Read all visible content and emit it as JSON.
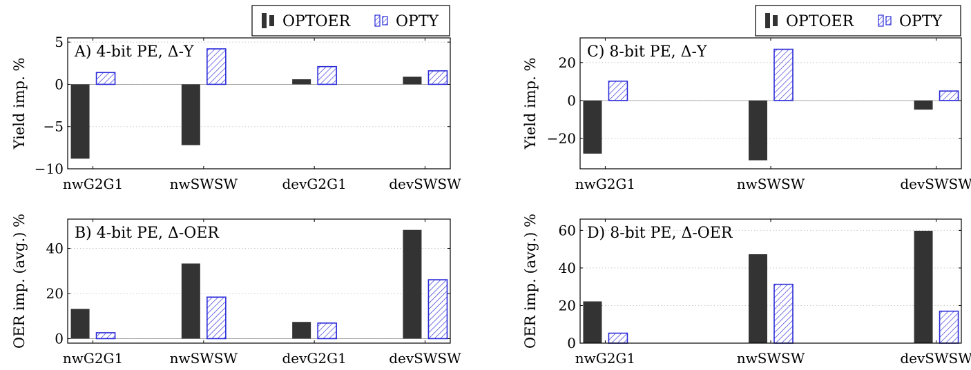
{
  "legend": [
    {
      "name": "OPTOER",
      "color": "#333333",
      "pattern": "solid"
    },
    {
      "name": "OPTY",
      "color": "#2b2bd9",
      "pattern": "hatch"
    }
  ],
  "chart_data": [
    {
      "type": "bar",
      "title": "A) 4-bit PE, Δ-Y",
      "ylabel": "Yield imp. %",
      "categories": [
        "nwG2G1",
        "nwSWSW",
        "devG2G1",
        "devSWSW"
      ],
      "ylim": [
        -10,
        5.5
      ],
      "yticks": [
        -10,
        -5,
        0,
        5
      ],
      "grid": true,
      "series": [
        {
          "name": "OPTOER",
          "values": [
            -8.8,
            -7.2,
            0.6,
            0.9
          ]
        },
        {
          "name": "OPTY",
          "values": [
            1.4,
            4.2,
            2.1,
            1.6
          ]
        }
      ]
    },
    {
      "type": "bar",
      "title": "B) 4-bit PE, Δ-OER",
      "ylabel": "OER imp. (avg.) %",
      "categories": [
        "nwG2G1",
        "nwSWSW",
        "devG2G1",
        "devSWSW"
      ],
      "ylim": [
        -2,
        53
      ],
      "yticks": [
        0,
        20,
        40
      ],
      "grid": true,
      "series": [
        {
          "name": "OPTOER",
          "values": [
            13.2,
            33.3,
            7.4,
            48.2
          ]
        },
        {
          "name": "OPTY",
          "values": [
            2.6,
            18.4,
            6.9,
            26.1
          ]
        }
      ]
    },
    {
      "type": "bar",
      "title": "C) 8-bit PE, Δ-Y",
      "ylabel": "Yield imp. %",
      "categories": [
        "nwG2G1",
        "nwSWSW",
        "devSWSW"
      ],
      "ylim": [
        -36,
        33
      ],
      "yticks": [
        -20,
        0,
        20
      ],
      "grid": true,
      "series": [
        {
          "name": "OPTOER",
          "values": [
            -28.0,
            -31.5,
            -4.8
          ]
        },
        {
          "name": "OPTY",
          "values": [
            10.2,
            27.0,
            5.0
          ]
        }
      ]
    },
    {
      "type": "bar",
      "title": "D) 8-bit PE, Δ-OER",
      "ylabel": "OER imp. (avg.) %",
      "categories": [
        "nwG2G1",
        "nwSWSW",
        "devSWSW"
      ],
      "ylim": [
        0,
        66
      ],
      "yticks": [
        0,
        20,
        40,
        60
      ],
      "grid": true,
      "series": [
        {
          "name": "OPTOER",
          "values": [
            22.2,
            47.3,
            59.8
          ]
        },
        {
          "name": "OPTY",
          "values": [
            5.3,
            31.3,
            17.0
          ]
        }
      ]
    }
  ]
}
